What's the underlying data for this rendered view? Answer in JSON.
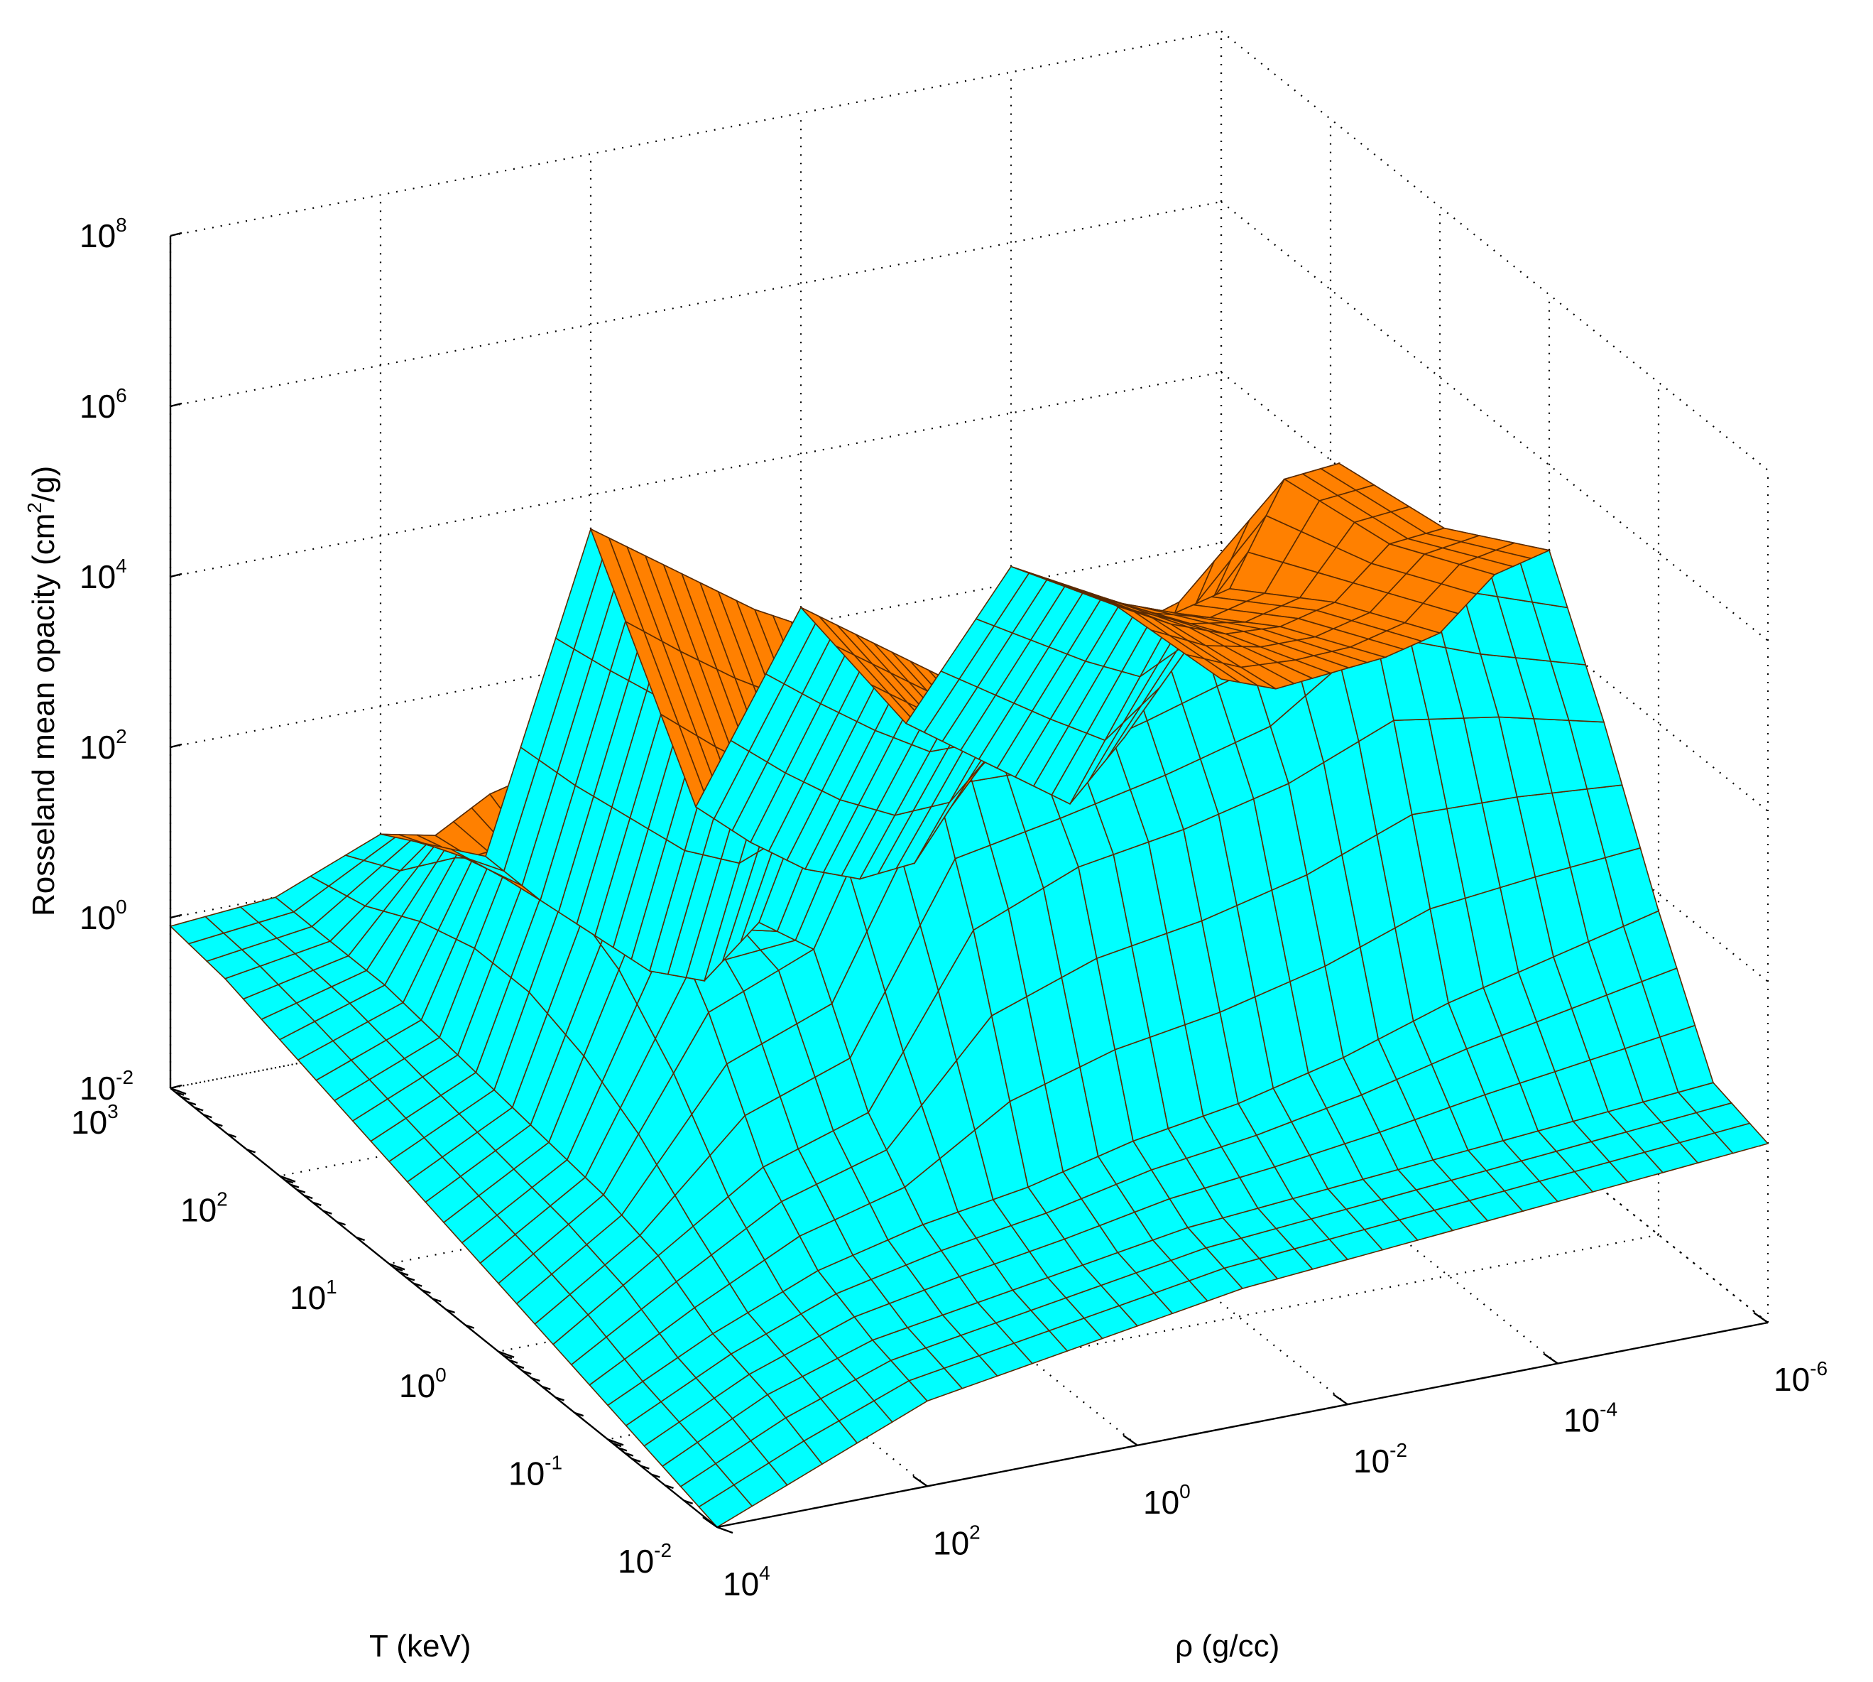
{
  "chart_data": {
    "type": "surface",
    "title": "",
    "xlabel": "ρ (g/cc)",
    "ylabel": "T (keV)",
    "zlabel": "Rosseland mean opacity (cm²/g)",
    "zlabel_parts": {
      "pre": "Rosseland mean opacity (cm",
      "sup": "2",
      "post": "/g)"
    },
    "scale": {
      "x": "log",
      "y": "log",
      "z": "log"
    },
    "xlim": [
      1e-06,
      10000.0
    ],
    "ylim": [
      0.01,
      1000.0
    ],
    "zlim": [
      0.01,
      100000000.0
    ],
    "x_ticks": [
      {
        "base": "10",
        "exp": "4",
        "value": 10000.0
      },
      {
        "base": "10",
        "exp": "2",
        "value": 100.0
      },
      {
        "base": "10",
        "exp": "0",
        "value": 1
      },
      {
        "base": "10",
        "exp": "-2",
        "value": 0.01
      },
      {
        "base": "10",
        "exp": "-4",
        "value": 0.0001
      },
      {
        "base": "10",
        "exp": "-6",
        "value": 1e-06
      }
    ],
    "y_ticks": [
      {
        "base": "10",
        "exp": "-2",
        "value": 0.01
      },
      {
        "base": "10",
        "exp": "-1",
        "value": 0.1
      },
      {
        "base": "10",
        "exp": "0",
        "value": 1
      },
      {
        "base": "10",
        "exp": "1",
        "value": 10.0
      },
      {
        "base": "10",
        "exp": "2",
        "value": 100.0
      },
      {
        "base": "10",
        "exp": "3",
        "value": 1000.0
      }
    ],
    "z_ticks": [
      {
        "base": "10",
        "exp": "-2",
        "value": 0.01
      },
      {
        "base": "10",
        "exp": "0",
        "value": 1
      },
      {
        "base": "10",
        "exp": "2",
        "value": 100.0
      },
      {
        "base": "10",
        "exp": "4",
        "value": 10000.0
      },
      {
        "base": "10",
        "exp": "6",
        "value": 1000000.0
      },
      {
        "base": "10",
        "exp": "8",
        "value": 100000000.0
      }
    ],
    "grid": true,
    "colors": {
      "surface_top": "#ff8000",
      "surface_underside": "#00ffff",
      "mesh_edges": "#5a2a00"
    },
    "surface_log10": {
      "log_rho": [
        4,
        3,
        2,
        1,
        0,
        -1,
        -2,
        -3,
        -4,
        -5,
        -6
      ],
      "log_T": [
        -2,
        -1.5,
        -1,
        -0.5,
        0,
        0.5,
        1,
        1.5,
        2,
        2.5,
        3
      ],
      "log_kappa": [
        [
          -2.0,
          -1.8,
          -1.6,
          -1.4,
          -1.2,
          -1.0,
          -0.8,
          -0.6,
          -0.4,
          -0.2,
          -0.1
        ],
        [
          -1.5,
          -1.2,
          -1.0,
          -0.6,
          -0.4,
          -0.3,
          -0.2,
          -0.1,
          0.0,
          0.0,
          0.0
        ],
        [
          -1.0,
          -0.8,
          -0.5,
          0.2,
          1.5,
          2.5,
          3.0,
          2.8,
          2.0,
          1.0,
          0.5
        ],
        [
          -0.8,
          -0.6,
          -0.2,
          0.6,
          2.0,
          1.8,
          0.6,
          0.2,
          0.1,
          0.0,
          0.0
        ],
        [
          -0.6,
          -0.4,
          0.0,
          2.5,
          4.5,
          4.8,
          4.5,
          4.2,
          4.0,
          3.8,
          3.6
        ],
        [
          -0.4,
          -0.2,
          0.3,
          3.0,
          4.2,
          3.0,
          1.5,
          0.8,
          0.4,
          0.2,
          0.1
        ],
        [
          -0.3,
          -0.1,
          0.5,
          3.2,
          4.6,
          4.2,
          3.4,
          2.8,
          2.6,
          2.4,
          2.2
        ],
        [
          -0.2,
          0.0,
          0.8,
          3.5,
          5.0,
          4.6,
          2.5,
          1.2,
          1.0,
          0.8,
          0.6
        ],
        [
          -0.1,
          0.1,
          1.2,
          4.0,
          6.5,
          5.8,
          4.0,
          3.2,
          2.8,
          2.5,
          2.2
        ],
        [
          0.0,
          0.2,
          1.5,
          3.8,
          5.5,
          4.8,
          3.6,
          2.8,
          2.2,
          1.8,
          1.5
        ],
        [
          0.1,
          0.3,
          1.8,
          3.5,
          5.0,
          4.2,
          3.0,
          2.2,
          1.5,
          0.8,
          0.4
        ]
      ]
    }
  }
}
